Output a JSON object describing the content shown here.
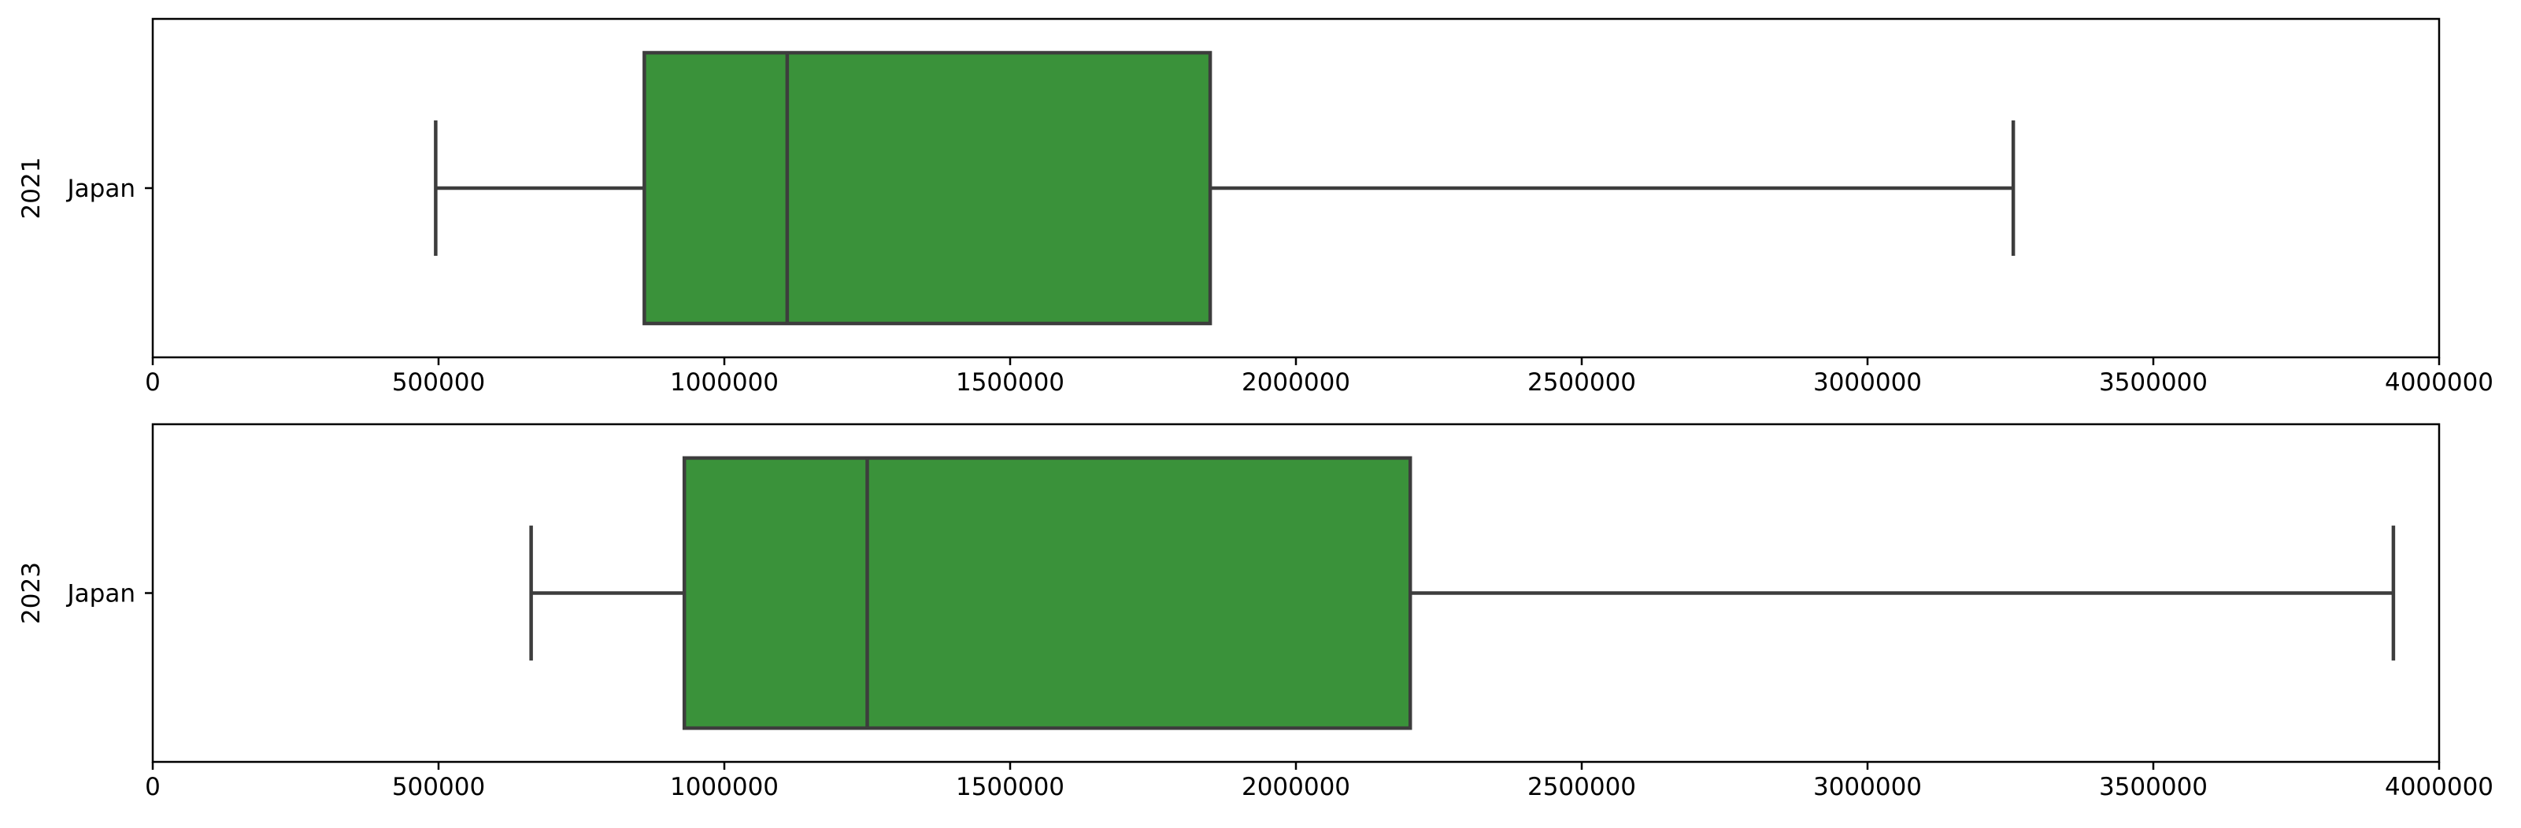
{
  "chart_data": [
    {
      "type": "box",
      "ylabel": "2021",
      "category": "Japan",
      "xlim": [
        0,
        4000000
      ],
      "xticks": [
        0,
        500000,
        1000000,
        1500000,
        2000000,
        2500000,
        3000000,
        3500000,
        4000000
      ],
      "xtick_labels": [
        "0",
        "500000",
        "1000000",
        "1500000",
        "2000000",
        "2500000",
        "3000000",
        "3500000",
        "4000000"
      ],
      "box": {
        "whisker_low": 495000,
        "q1": 860000,
        "median": 1110000,
        "q3": 1850000,
        "whisker_high": 3255000
      },
      "box_color": "#3a923a",
      "line_color": "#3d3d3d",
      "grid": false
    },
    {
      "type": "box",
      "ylabel": "2023",
      "category": "Japan",
      "xlim": [
        0,
        4000000
      ],
      "xticks": [
        0,
        500000,
        1000000,
        1500000,
        2000000,
        2500000,
        3000000,
        3500000,
        4000000
      ],
      "xtick_labels": [
        "0",
        "500000",
        "1000000",
        "1500000",
        "2000000",
        "2500000",
        "3000000",
        "3500000",
        "4000000"
      ],
      "box": {
        "whisker_low": 662000,
        "q1": 930000,
        "median": 1250000,
        "q3": 2200000,
        "whisker_high": 3920000
      },
      "box_color": "#3a923a",
      "line_color": "#3d3d3d",
      "grid": false
    }
  ]
}
